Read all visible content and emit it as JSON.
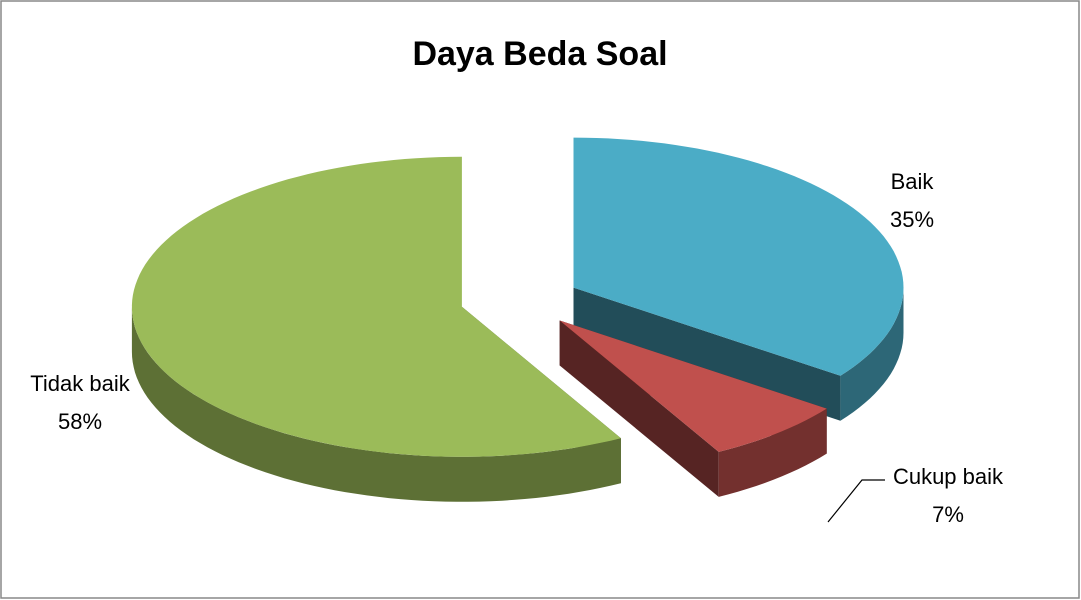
{
  "chart_data": {
    "type": "pie",
    "title": "Daya Beda Soal",
    "categories": [
      "Baik",
      "Cukup baik",
      "Tidak baik"
    ],
    "values": [
      35,
      7,
      58
    ],
    "value_labels": [
      "35%",
      "7%",
      "58%"
    ],
    "colors": [
      "#4bacc6",
      "#c0504d",
      "#9bbb59"
    ],
    "exploded": true,
    "three_d": true
  }
}
